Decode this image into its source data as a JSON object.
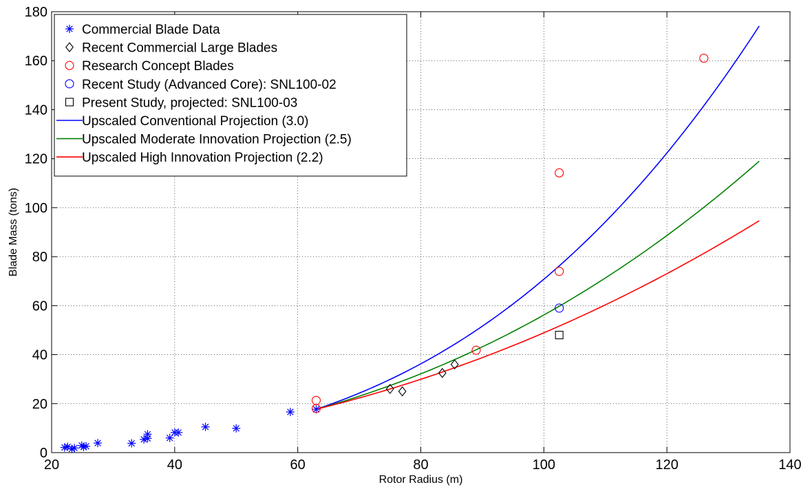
{
  "chart_data": {
    "type": "scatter",
    "xlabel": "Rotor Radius (m)",
    "ylabel": "Blade Mass (tons)",
    "xlim": [
      20,
      140
    ],
    "ylim": [
      0,
      180
    ],
    "xticks": [
      20,
      40,
      60,
      80,
      100,
      120,
      140
    ],
    "yticks": [
      0,
      20,
      40,
      60,
      80,
      100,
      120,
      140,
      160,
      180
    ],
    "grid": true,
    "legend_position": "top-left",
    "series": [
      {
        "name": "Commercial Blade Data",
        "kind": "scatter",
        "marker": "asterisk",
        "color": "#0000ff",
        "points": [
          [
            22.1,
            2.1
          ],
          [
            22.6,
            2.4
          ],
          [
            23.3,
            1.5
          ],
          [
            23.7,
            1.9
          ],
          [
            24.9,
            2.9
          ],
          [
            25.2,
            2.3
          ],
          [
            25.6,
            2.6
          ],
          [
            27.5,
            3.9
          ],
          [
            33.0,
            3.8
          ],
          [
            35.0,
            5.4
          ],
          [
            35.6,
            7.5
          ],
          [
            35.6,
            5.8
          ],
          [
            39.2,
            6.0
          ],
          [
            40.0,
            8.2
          ],
          [
            40.6,
            8.2
          ],
          [
            45.0,
            10.5
          ],
          [
            50.0,
            9.9
          ],
          [
            58.8,
            16.6
          ],
          [
            63.0,
            17.7
          ]
        ]
      },
      {
        "name": "Recent Commercial Large Blades",
        "kind": "scatter",
        "marker": "diamond",
        "color": "#000000",
        "points": [
          [
            75.0,
            26.0
          ],
          [
            77.0,
            25.0
          ],
          [
            83.5,
            32.5
          ],
          [
            85.5,
            36.0
          ]
        ]
      },
      {
        "name": "Research Concept Blades",
        "kind": "scatter",
        "marker": "circle",
        "color": "#ff0000",
        "points": [
          [
            63.0,
            21.3
          ],
          [
            63.0,
            18.0
          ],
          [
            89.0,
            41.8
          ],
          [
            102.5,
            74.0
          ],
          [
            102.5,
            114.2
          ],
          [
            126.0,
            161.0
          ]
        ]
      },
      {
        "name": "Recent Study (Advanced Core): SNL100-02",
        "kind": "scatter",
        "marker": "circle",
        "color": "#0000ff",
        "points": [
          [
            102.5,
            59.0
          ]
        ]
      },
      {
        "name": "Present Study, projected: SNL100-03",
        "kind": "scatter",
        "marker": "square",
        "color": "#000000",
        "points": [
          [
            102.5,
            48.0
          ]
        ]
      },
      {
        "name": "Upscaled Conventional Projection (3.0)",
        "kind": "line",
        "color": "#0000ff",
        "exponent": 3.0,
        "x_range": [
          63,
          135
        ],
        "y_at_start": 17.7
      },
      {
        "name": "Upscaled Moderate Innovation Projection (2.5)",
        "kind": "line",
        "color": "#008000",
        "exponent": 2.5,
        "x_range": [
          63,
          135
        ],
        "y_at_start": 17.7
      },
      {
        "name": "Upscaled High Innovation Projection (2.2)",
        "kind": "line",
        "color": "#ff0000",
        "exponent": 2.2,
        "x_range": [
          63,
          135
        ],
        "y_at_start": 17.7
      }
    ]
  }
}
